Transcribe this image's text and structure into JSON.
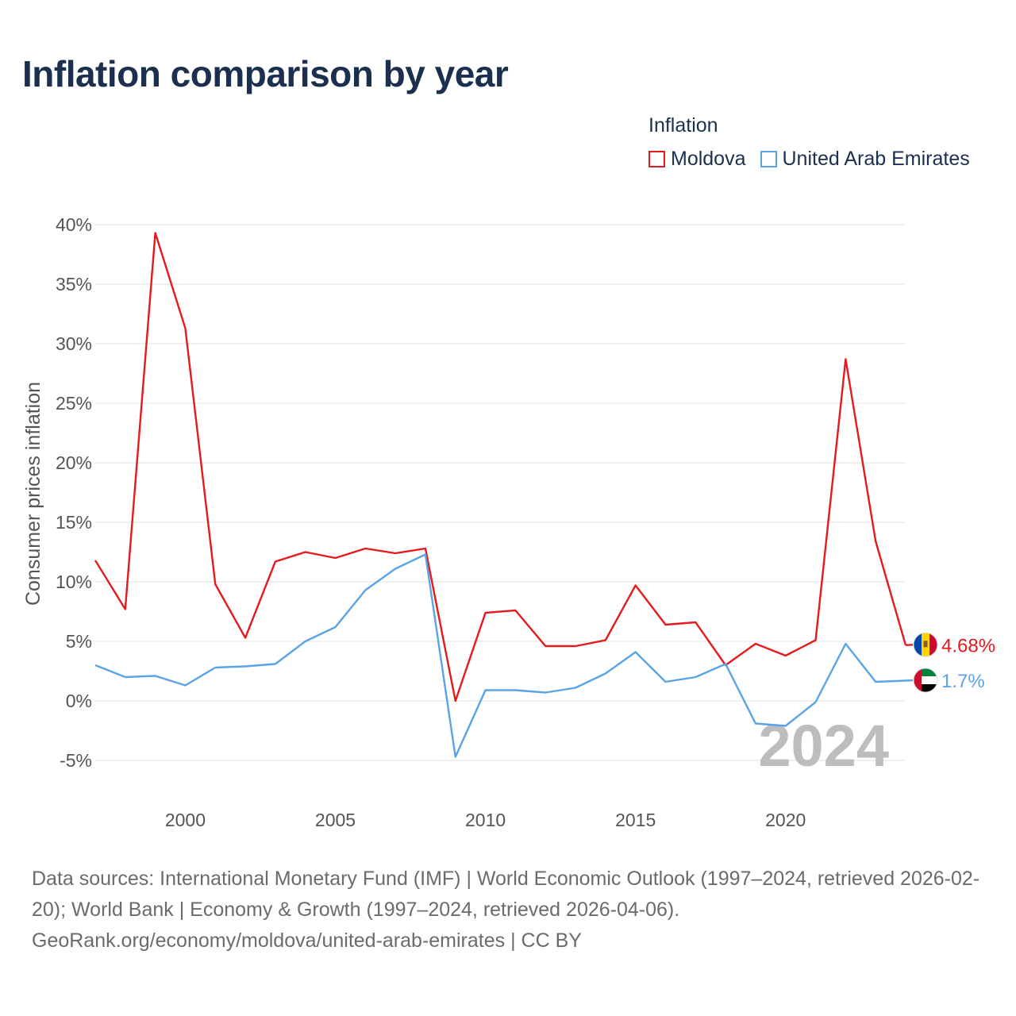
{
  "title": "Inflation comparison by year",
  "legend": {
    "title": "Inflation",
    "items": [
      {
        "label": "Moldova",
        "color": "#e41a1c"
      },
      {
        "label": "United Arab Emirates",
        "color": "#5aa3e6"
      }
    ]
  },
  "footer": {
    "sources": "Data sources: International Monetary Fund (IMF) | World Economic Outlook (1997–2024, retrieved 2026-02-20); World Bank | Economy & Growth (1997–2024, retrieved 2026-04-06).",
    "credit": "GeoRank.org/economy/moldova/united-arab-emirates | CC BY"
  },
  "chart_data": {
    "type": "line",
    "title": "Inflation comparison by year",
    "xlabel": "",
    "ylabel": "Consumer prices inflation",
    "xlim": [
      1997,
      2024
    ],
    "ylim": [
      -5,
      40
    ],
    "yticks": [
      -5,
      0,
      5,
      10,
      15,
      20,
      25,
      30,
      35,
      40
    ],
    "ytick_labels": [
      "-5%",
      "0%",
      "5%",
      "10%",
      "15%",
      "20%",
      "25%",
      "30%",
      "35%",
      "40%"
    ],
    "xticks": [
      2000,
      2005,
      2010,
      2015,
      2020
    ],
    "xtick_labels": [
      "2000",
      "2005",
      "2010",
      "2015",
      "2020"
    ],
    "year_marker": "2024",
    "grid": true,
    "x": [
      1997,
      1998,
      1999,
      2000,
      2001,
      2002,
      2003,
      2004,
      2005,
      2006,
      2007,
      2008,
      2009,
      2010,
      2011,
      2012,
      2013,
      2014,
      2015,
      2016,
      2017,
      2018,
      2019,
      2020,
      2021,
      2022,
      2023,
      2024
    ],
    "series": [
      {
        "name": "Moldova",
        "color": "#e41a1c",
        "end_label": "4.68%",
        "flag": "moldova-flag-icon",
        "values": [
          11.8,
          7.7,
          39.3,
          31.3,
          9.8,
          5.3,
          11.7,
          12.5,
          12.0,
          12.8,
          12.4,
          12.8,
          0.0,
          7.4,
          7.6,
          4.6,
          4.6,
          5.1,
          9.7,
          6.4,
          6.6,
          3.0,
          4.8,
          3.8,
          5.1,
          28.7,
          13.4,
          4.68
        ]
      },
      {
        "name": "United Arab Emirates",
        "color": "#5aa3e6",
        "end_label": "1.7%",
        "flag": "uae-flag-icon",
        "values": [
          3.0,
          2.0,
          2.1,
          1.3,
          2.8,
          2.9,
          3.1,
          5.0,
          6.2,
          9.3,
          11.1,
          12.3,
          -4.7,
          0.9,
          0.9,
          0.7,
          1.1,
          2.3,
          4.1,
          1.6,
          2.0,
          3.1,
          -1.9,
          -2.1,
          -0.1,
          4.8,
          1.6,
          1.7
        ]
      }
    ]
  }
}
